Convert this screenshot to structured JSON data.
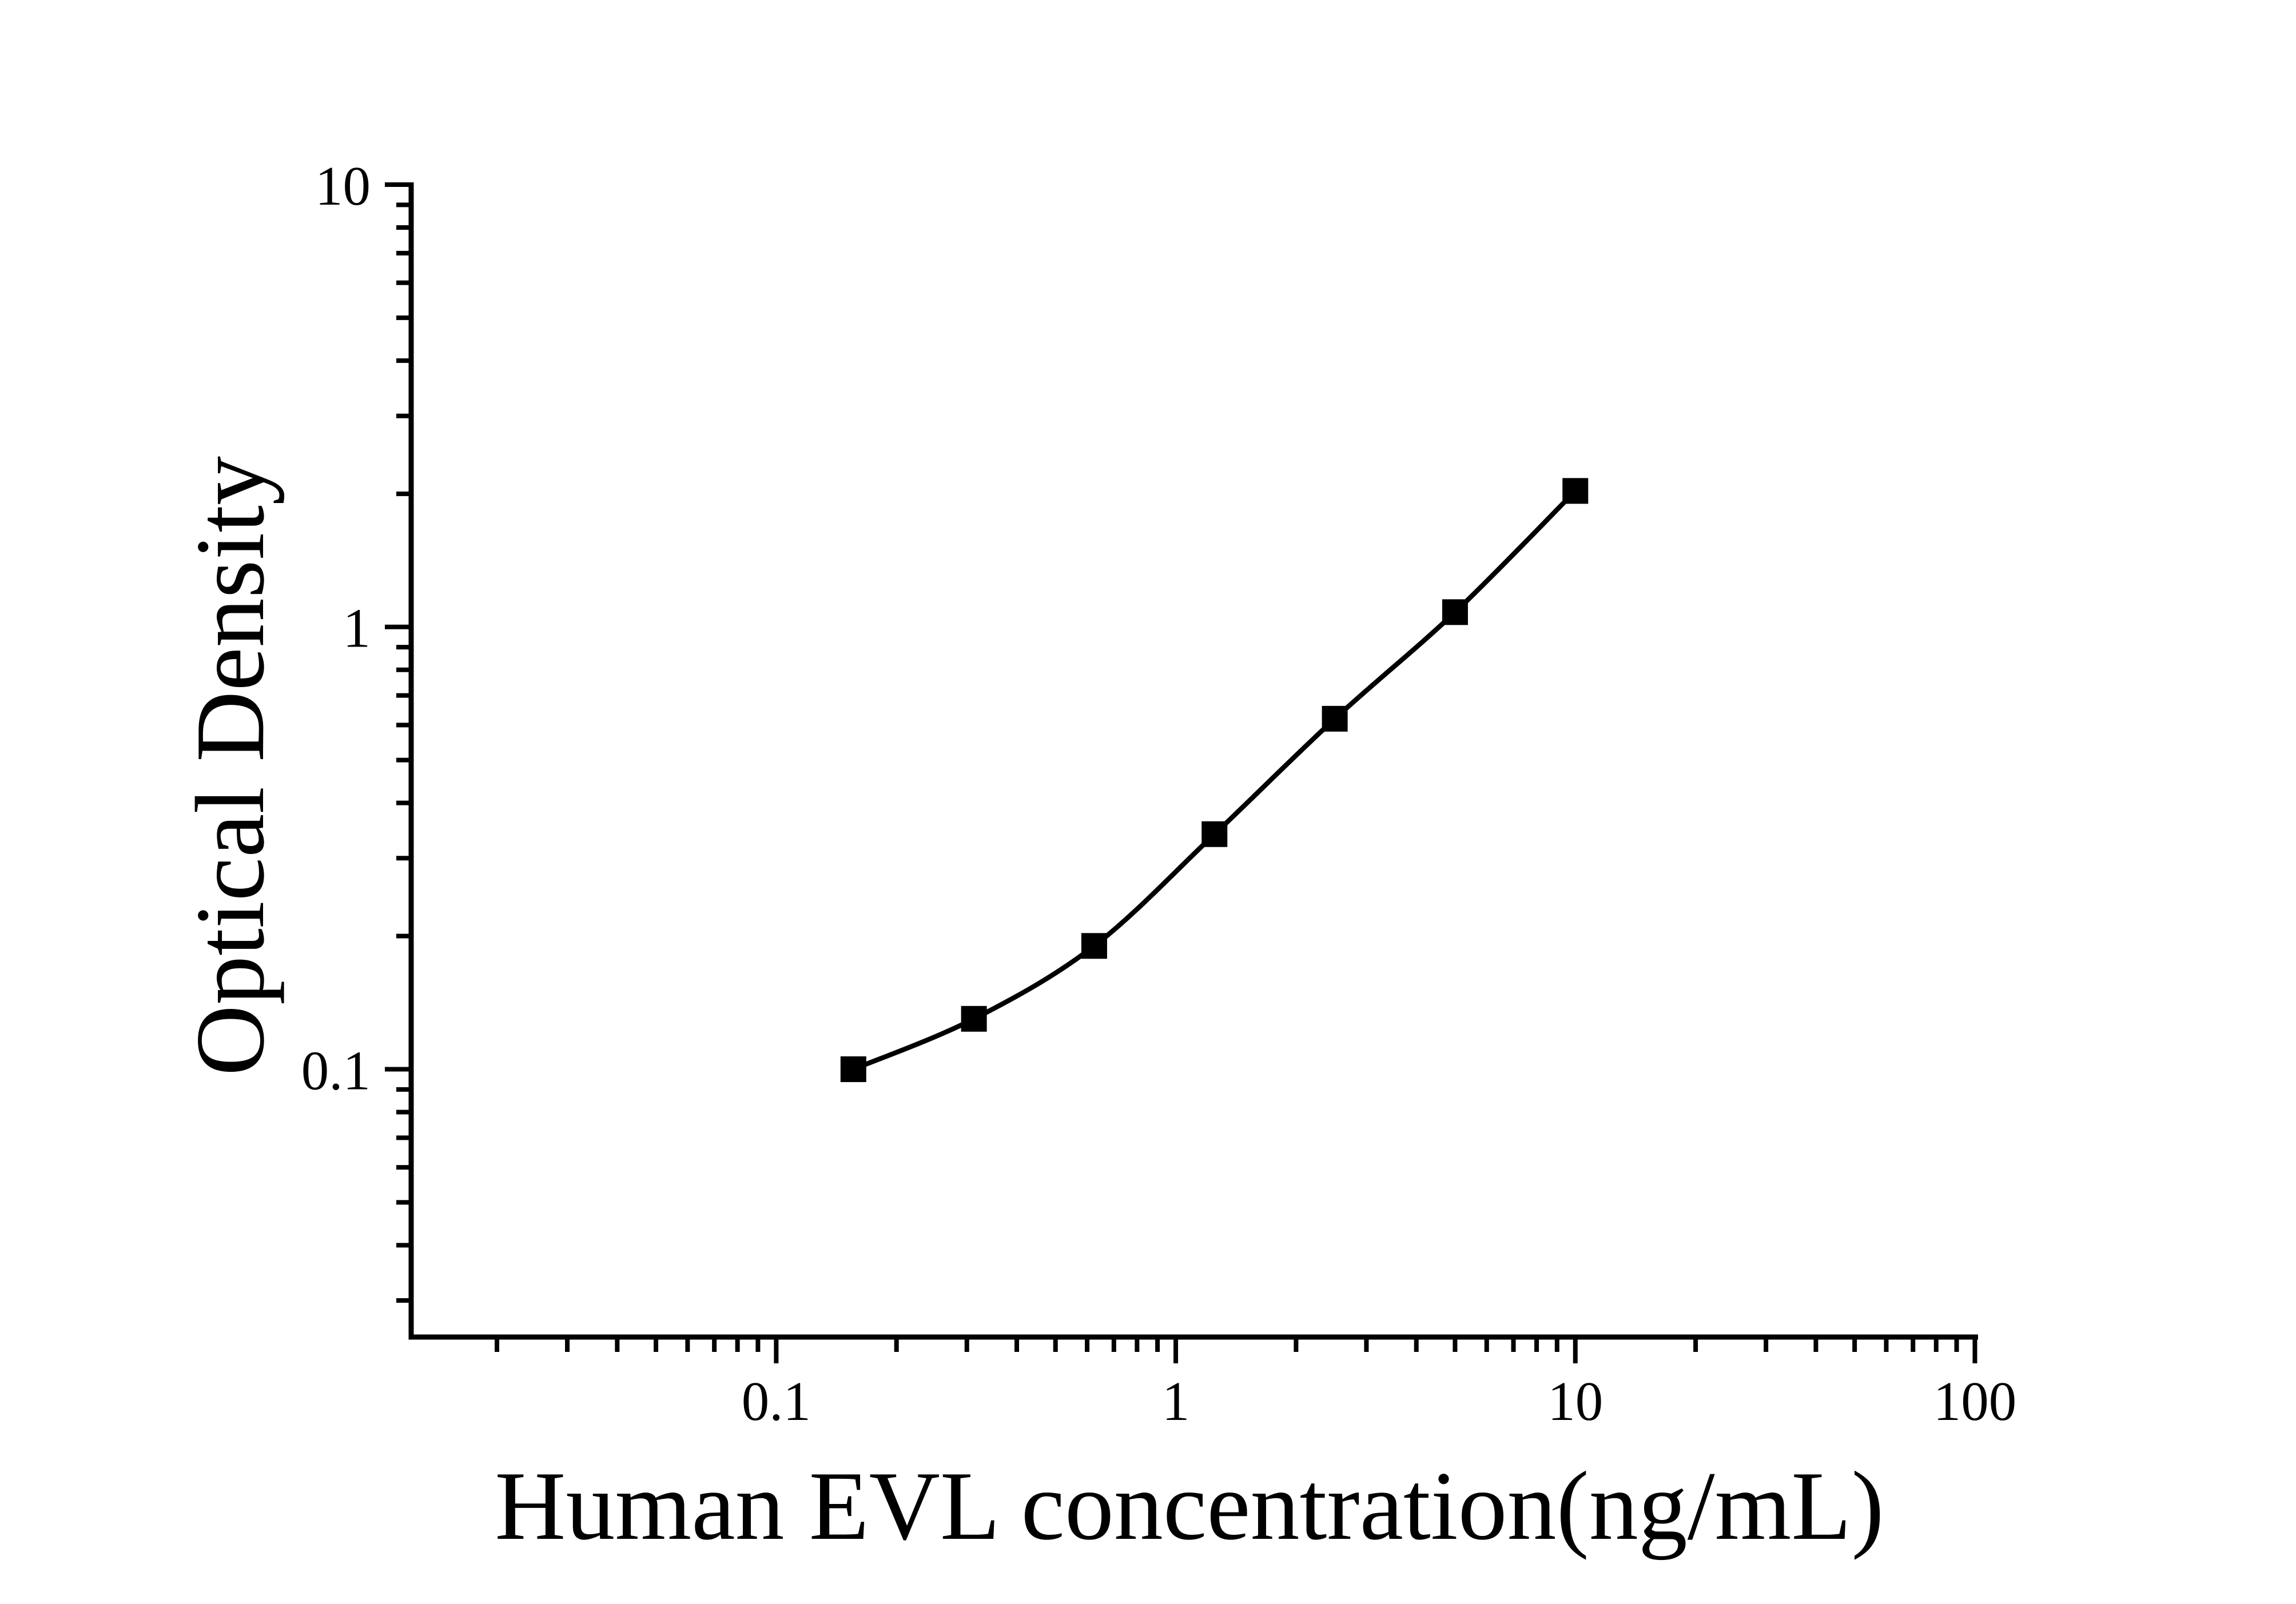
{
  "figure": {
    "background": "#ffffff",
    "foreground": "#000000"
  },
  "chart_data": {
    "type": "line",
    "title": "",
    "xlabel": "Human EVL concentration(ng/mL)",
    "ylabel": "Optical Density",
    "x_scale": "log",
    "y_scale": "log",
    "xlim": [
      0.0122,
      100.5
    ],
    "ylim": [
      0.0248,
      10
    ],
    "x_major_ticks": [
      {
        "value": 0.1,
        "label": "0.1"
      },
      {
        "value": 1,
        "label": "1"
      },
      {
        "value": 10,
        "label": "10"
      },
      {
        "value": 100,
        "label": "100"
      }
    ],
    "y_major_ticks": [
      {
        "value": 10,
        "label": "10"
      },
      {
        "value": 1,
        "label": "1"
      },
      {
        "value": 0.1,
        "label": "0.1"
      }
    ],
    "minor_ticks": "log minor ticks at 2-9 per decade, unlabeled",
    "grid": false,
    "legend": false,
    "series": [
      {
        "marker": "filled-square",
        "marker_color": "#000000",
        "line_color": "#000000",
        "points": [
          {
            "x": 0.156,
            "y": 0.1
          },
          {
            "x": 0.3125,
            "y": 0.13
          },
          {
            "x": 0.625,
            "y": 0.19
          },
          {
            "x": 1.25,
            "y": 0.34
          },
          {
            "x": 2.5,
            "y": 0.62
          },
          {
            "x": 5,
            "y": 1.08
          },
          {
            "x": 10,
            "y": 2.03
          }
        ]
      }
    ]
  }
}
